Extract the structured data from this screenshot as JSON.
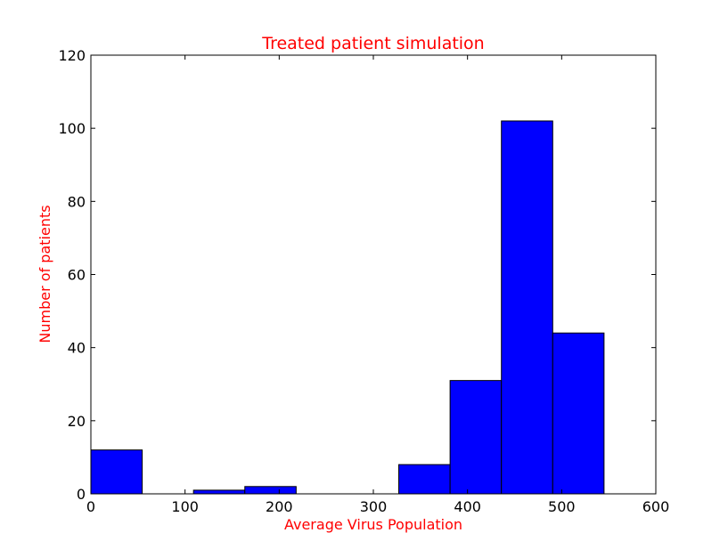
{
  "chart_data": {
    "type": "bar",
    "title": "Treated patient simulation",
    "xlabel": "Average Virus Population",
    "ylabel": "Number of patients",
    "xlim": [
      0,
      600
    ],
    "ylim": [
      0,
      120
    ],
    "x_ticks": [
      "0",
      "100",
      "200",
      "300",
      "400",
      "500",
      "600"
    ],
    "y_ticks": [
      "0",
      "20",
      "40",
      "60",
      "80",
      "100",
      "120"
    ],
    "bin_width": 54.5,
    "bins": [
      {
        "start": 0,
        "value": 12
      },
      {
        "start": 54.5,
        "value": 0
      },
      {
        "start": 109,
        "value": 1
      },
      {
        "start": 163.5,
        "value": 2
      },
      {
        "start": 218,
        "value": 0
      },
      {
        "start": 272.5,
        "value": 0
      },
      {
        "start": 327,
        "value": 8
      },
      {
        "start": 381.5,
        "value": 31
      },
      {
        "start": 436,
        "value": 102
      },
      {
        "start": 490.5,
        "value": 44
      }
    ],
    "grid": false,
    "colors": {
      "bar_fill": "#0000ff",
      "bar_edge": "#000000",
      "title": "#ff0000",
      "axis_label": "#ff0000"
    }
  }
}
